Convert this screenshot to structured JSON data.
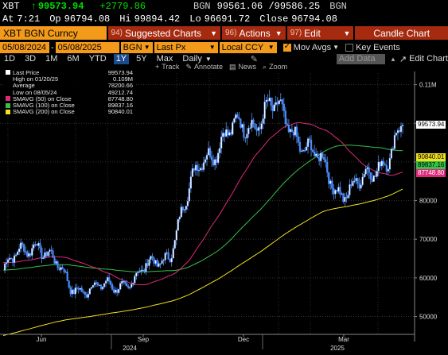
{
  "header": {
    "ticker": "XBT",
    "arrow": "↑",
    "last": "99573.94",
    "change": "+2779.86",
    "source": "BGN",
    "bid_ask": "99561.06 /99586.25",
    "source2": "BGN",
    "at_label": "At",
    "time": "7:21",
    "op_label": "Op",
    "open": "96794.08",
    "hi_label": "Hi",
    "high": "99894.42",
    "lo_label": "Lo",
    "low": "96691.72",
    "close_label": "Close",
    "close": "96794.08"
  },
  "toolbar": {
    "security": "XBT BGN Curncy",
    "menus": [
      {
        "num": "94)",
        "label": "Suggested Charts"
      },
      {
        "num": "96)",
        "label": "Actions"
      },
      {
        "num": "97)",
        "label": "Edit"
      }
    ],
    "chart_type": "Candle Chart"
  },
  "controls": {
    "start_date": "05/08/2024",
    "end_date": "05/08/2025",
    "source": "BGN",
    "field": "Last Px",
    "currency": "Local CCY",
    "mov_avgs_label": "Mov Avgs",
    "key_events_label": "Key Events",
    "periods": [
      "1D",
      "3D",
      "1M",
      "6M",
      "YTD",
      "1Y",
      "5Y",
      "Max"
    ],
    "selected_period": "1Y",
    "frequency": "Daily",
    "add_data": "Add Data",
    "edit_chart": "Edit Chart",
    "tools": [
      "Track",
      "Annotate",
      "News",
      "Zoom"
    ]
  },
  "legend": [
    {
      "label": "Last Price",
      "value": "99573.94",
      "color": "#ffffff"
    },
    {
      "label": "High on 01/20/25",
      "value": "0.109M",
      "color": ""
    },
    {
      "label": "Average",
      "value": "78200.66",
      "color": ""
    },
    {
      "label": "Low on 08/05/24",
      "value": "49212.74",
      "color": ""
    },
    {
      "label": "SMAVG (50)  on Close",
      "value": "87748.80",
      "color": "#e0287a"
    },
    {
      "label": "SMAVG (100)  on Close",
      "value": "89837.16",
      "color": "#35c24a"
    },
    {
      "label": "SMAVG (200)  on Close",
      "value": "90840.01",
      "color": "#f0e020"
    }
  ],
  "chart_data": {
    "type": "candlestick",
    "y_axis_labels": [
      "0.11M",
      "100000",
      "90000",
      "80000",
      "70000",
      "60000",
      "50000"
    ],
    "y_axis_values": [
      110000,
      100000,
      90000,
      80000,
      70000,
      60000,
      50000
    ],
    "ylim": [
      46000,
      113000
    ],
    "x_month_labels": [
      "Jun",
      "Sep",
      "Dec",
      "Mar"
    ],
    "x_year_labels": [
      "2024",
      "2025"
    ],
    "price_tags": [
      {
        "label": "99573.94",
        "value": 99573.94,
        "bg": "#ffffff",
        "fg": "#000000"
      },
      {
        "label": "90840.01",
        "value": 90840.01,
        "bg": "#f0e020",
        "fg": "#000000"
      },
      {
        "label": "89837.16",
        "value": 89837.16,
        "bg": "#35c24a",
        "fg": "#000000"
      },
      {
        "label": "87748.80",
        "value": 87748.8,
        "bg": "#e0287a",
        "fg": "#ffffff"
      }
    ],
    "candle_color": "#4a8cff",
    "key_points": [
      {
        "month": "May",
        "approx_price": 62000
      },
      {
        "month": "Jun",
        "approx_price": 70000
      },
      {
        "month": "Jul",
        "approx_price": 58000
      },
      {
        "month": "Aug",
        "approx_price": 57000
      },
      {
        "month": "Sep",
        "approx_price": 60000
      },
      {
        "month": "Oct",
        "approx_price": 67000
      },
      {
        "month": "Nov",
        "approx_price": 92000
      },
      {
        "month": "Dec",
        "approx_price": 98000
      },
      {
        "month": "Jan",
        "approx_price": 104000
      },
      {
        "month": "Feb",
        "approx_price": 96000
      },
      {
        "month": "Mar",
        "approx_price": 83000
      },
      {
        "month": "Apr",
        "approx_price": 85000
      },
      {
        "month": "May",
        "approx_price": 99573.94
      }
    ]
  }
}
